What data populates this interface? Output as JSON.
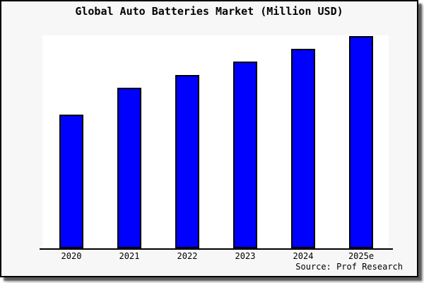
{
  "window": {
    "card_background": "#f7f7f7",
    "page_background": "#ffffff",
    "border_color": "#000000"
  },
  "chart_data": {
    "type": "bar",
    "title": "Global Auto Batteries Market (Million USD)",
    "categories": [
      "2020",
      "2021",
      "2022",
      "2023",
      "2024",
      "2025e"
    ],
    "values": [
      63,
      75.5,
      81.5,
      88,
      94,
      100
    ],
    "values_note": "relative scale estimated from bar heights; no y-axis tick labels are shown, tallest bar (2025e) = 100",
    "xlabel": "",
    "ylabel": "",
    "ylim": [
      0,
      100
    ],
    "grid": false,
    "legend": false,
    "bar_color": "#0000ff",
    "bar_border_color": "#000000",
    "plot_background": "#ffffff",
    "source_label": "Source: Prof Research"
  }
}
